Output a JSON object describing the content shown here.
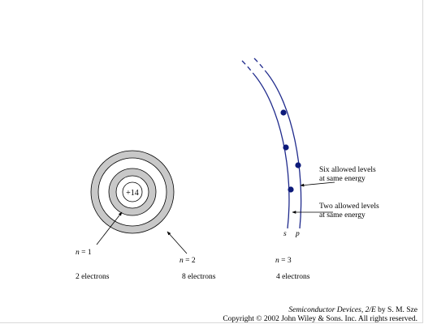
{
  "diagram": {
    "nucleus_charge": "+14",
    "shells": [
      {
        "n_label": "n = 1",
        "n_var": "n",
        "n_eq": " = 1",
        "count": "2 electrons"
      },
      {
        "n_label": "n = 2",
        "n_var": "n",
        "n_eq": " = 2",
        "count": "8 electrons"
      },
      {
        "n_label": "n = 3",
        "n_var": "n",
        "n_eq": " = 3",
        "count": "4 electrons"
      }
    ],
    "annotations": {
      "six_levels_line1": "Six allowed levels",
      "six_levels_line2": "at same energy",
      "two_levels_line1": "Two allowed levels",
      "two_levels_line2": "at same energy"
    },
    "sublevels": {
      "s": "s",
      "p": "p"
    },
    "colors": {
      "shell_fill": "#c8c8c8",
      "outline": "#000000",
      "orbit_line": "#1f2a8c",
      "electron": "#0d1a7a"
    }
  },
  "credit": {
    "book_title": "Semiconductor Devices, 2/E",
    "by": " by S. M. Sze",
    "copyright": "Copyright © 2002 John Wiley & Sons. Inc. All rights reserved."
  }
}
